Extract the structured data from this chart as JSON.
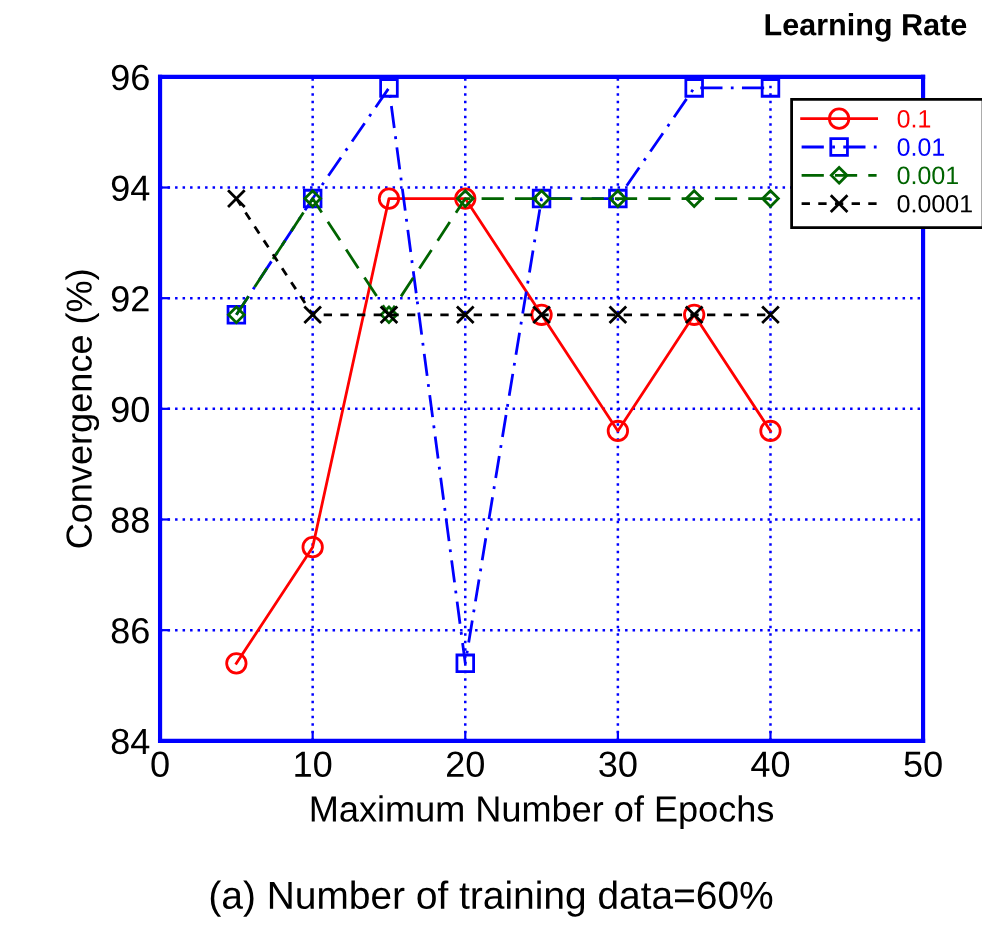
{
  "chart_data": {
    "type": "line",
    "xlabel": "Maximum Number of Epochs",
    "ylabel": "Convergence (%)",
    "legend_title": "Learning Rate",
    "x": [
      5,
      10,
      15,
      20,
      25,
      30,
      35,
      40
    ],
    "series": [
      {
        "name": "0.1",
        "color": "#ff0000",
        "marker": "circle",
        "line_style": "solid",
        "values": [
          85.4,
          87.5,
          93.8,
          93.8,
          91.7,
          89.6,
          91.7,
          89.6
        ]
      },
      {
        "name": "0.01",
        "color": "#0000ff",
        "marker": "square",
        "line_style": "dashdot",
        "values": [
          91.7,
          93.8,
          95.8,
          85.4,
          93.8,
          93.8,
          95.8,
          95.8
        ]
      },
      {
        "name": "0.001",
        "color": "#006400",
        "marker": "diamond",
        "line_style": "dashed",
        "values": [
          91.7,
          93.8,
          91.7,
          93.8,
          93.8,
          93.8,
          93.8,
          93.8
        ]
      },
      {
        "name": "0.0001",
        "color": "#000000",
        "marker": "cross",
        "line_style": "dotted",
        "values": [
          93.8,
          91.7,
          91.7,
          91.7,
          91.7,
          91.7,
          91.7,
          91.7
        ]
      }
    ],
    "xlim": [
      0,
      50
    ],
    "xticks": [
      0,
      10,
      20,
      30,
      40,
      50
    ],
    "ylim": [
      84,
      96
    ],
    "yticks": [
      84,
      86,
      88,
      90,
      92,
      94,
      96
    ],
    "grid": true,
    "legend": "top right",
    "annotations": [
      "(a) Number of training data=60%"
    ]
  }
}
